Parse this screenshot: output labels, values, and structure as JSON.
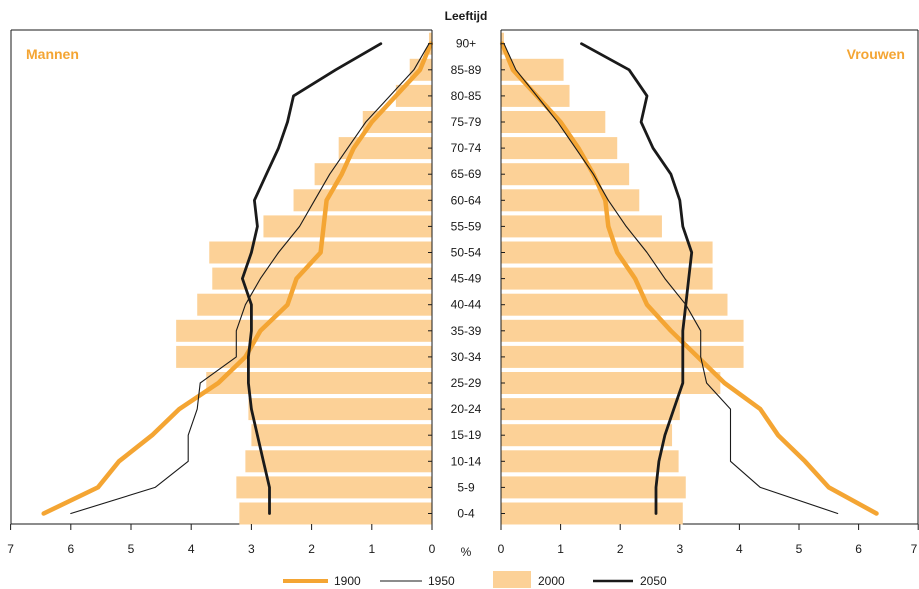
{
  "chart_data": {
    "type": "bar",
    "title": "",
    "age_axis_label": "Leeftijd",
    "x_unit_label": "%",
    "left_label": "Mannen",
    "right_label": "Vrouwen",
    "categories": [
      "0-4",
      "5-9",
      "10-14",
      "15-19",
      "20-24",
      "25-29",
      "30-34",
      "35-39",
      "40-44",
      "45-49",
      "50-54",
      "55-59",
      "60-64",
      "65-69",
      "70-74",
      "75-79",
      "80-85",
      "85-89",
      "90+"
    ],
    "xlim": [
      0,
      7
    ],
    "x_ticks": [
      "0",
      "1",
      "2",
      "3",
      "4",
      "5",
      "6",
      "7"
    ],
    "grid": false,
    "legend_position": "bottom",
    "colors": {
      "1900": "#f4a533",
      "1950": "#1a1a1a",
      "2000": "#fcd197",
      "2050": "#1a1a1a"
    },
    "series": [
      {
        "name": "1900",
        "kind": "line",
        "men": [
          6.45,
          5.55,
          5.2,
          4.65,
          4.2,
          3.55,
          3.1,
          2.85,
          2.4,
          2.25,
          1.85,
          1.8,
          1.75,
          1.5,
          1.3,
          1.0,
          0.6,
          0.2,
          0.02
        ],
        "women": [
          6.3,
          5.5,
          5.1,
          4.65,
          4.35,
          3.75,
          3.3,
          2.85,
          2.45,
          2.25,
          1.95,
          1.8,
          1.75,
          1.55,
          1.3,
          1.0,
          0.6,
          0.2,
          0.02
        ]
      },
      {
        "name": "1950",
        "kind": "line",
        "men": [
          6.0,
          4.6,
          4.05,
          4.05,
          3.9,
          3.85,
          3.25,
          3.25,
          3.1,
          2.85,
          2.55,
          2.2,
          1.95,
          1.7,
          1.4,
          1.1,
          0.7,
          0.3,
          0.05
        ],
        "women": [
          5.65,
          4.35,
          3.85,
          3.85,
          3.85,
          3.45,
          3.35,
          3.35,
          3.1,
          2.75,
          2.45,
          2.1,
          1.8,
          1.55,
          1.25,
          0.95,
          0.6,
          0.25,
          0.05
        ]
      },
      {
        "name": "2000",
        "kind": "bar",
        "men": [
          3.2,
          3.25,
          3.1,
          3.0,
          3.05,
          3.75,
          4.25,
          4.25,
          3.9,
          3.65,
          3.7,
          2.8,
          2.3,
          1.95,
          1.55,
          1.15,
          0.6,
          0.37,
          0.05
        ],
        "women": [
          3.05,
          3.1,
          2.98,
          2.87,
          3.0,
          3.68,
          4.07,
          4.07,
          3.8,
          3.55,
          3.55,
          2.7,
          2.32,
          2.15,
          1.95,
          1.75,
          1.15,
          1.05,
          0.05
        ]
      },
      {
        "name": "2050",
        "kind": "line",
        "men": [
          2.7,
          2.7,
          2.8,
          2.9,
          3.0,
          3.05,
          3.05,
          3.0,
          3.0,
          3.15,
          3.0,
          2.9,
          2.95,
          2.75,
          2.55,
          2.4,
          2.3,
          1.6,
          0.85
        ],
        "women": [
          2.6,
          2.6,
          2.65,
          2.75,
          2.9,
          3.05,
          3.05,
          3.05,
          3.1,
          3.15,
          3.2,
          3.05,
          3.0,
          2.85,
          2.55,
          2.35,
          2.45,
          2.15,
          1.35
        ]
      }
    ]
  }
}
